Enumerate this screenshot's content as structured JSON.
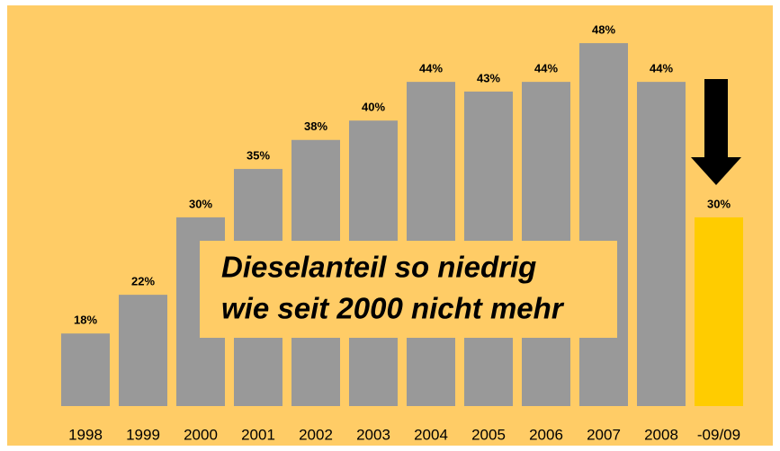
{
  "chart_data": {
    "type": "bar",
    "categories": [
      "1998",
      "1999",
      "2000",
      "2001",
      "2002",
      "2003",
      "2004",
      "2005",
      "2006",
      "2007",
      "2008",
      "-09/09"
    ],
    "values": [
      18,
      22,
      30,
      35,
      38,
      40,
      44,
      43,
      44,
      48,
      44,
      30
    ],
    "value_labels": [
      "18%",
      "22%",
      "30%",
      "35%",
      "38%",
      "40%",
      "44%",
      "43%",
      "44%",
      "48%",
      "44%",
      "30%"
    ],
    "colors": [
      "#999999",
      "#999999",
      "#999999",
      "#999999",
      "#999999",
      "#999999",
      "#999999",
      "#999999",
      "#999999",
      "#999999",
      "#999999",
      "#ffcc00"
    ],
    "ylim": [
      10.5,
      50
    ],
    "annotation": [
      "Dieselanteil so niedrig",
      "wie seit 2000 nicht mehr"
    ]
  }
}
